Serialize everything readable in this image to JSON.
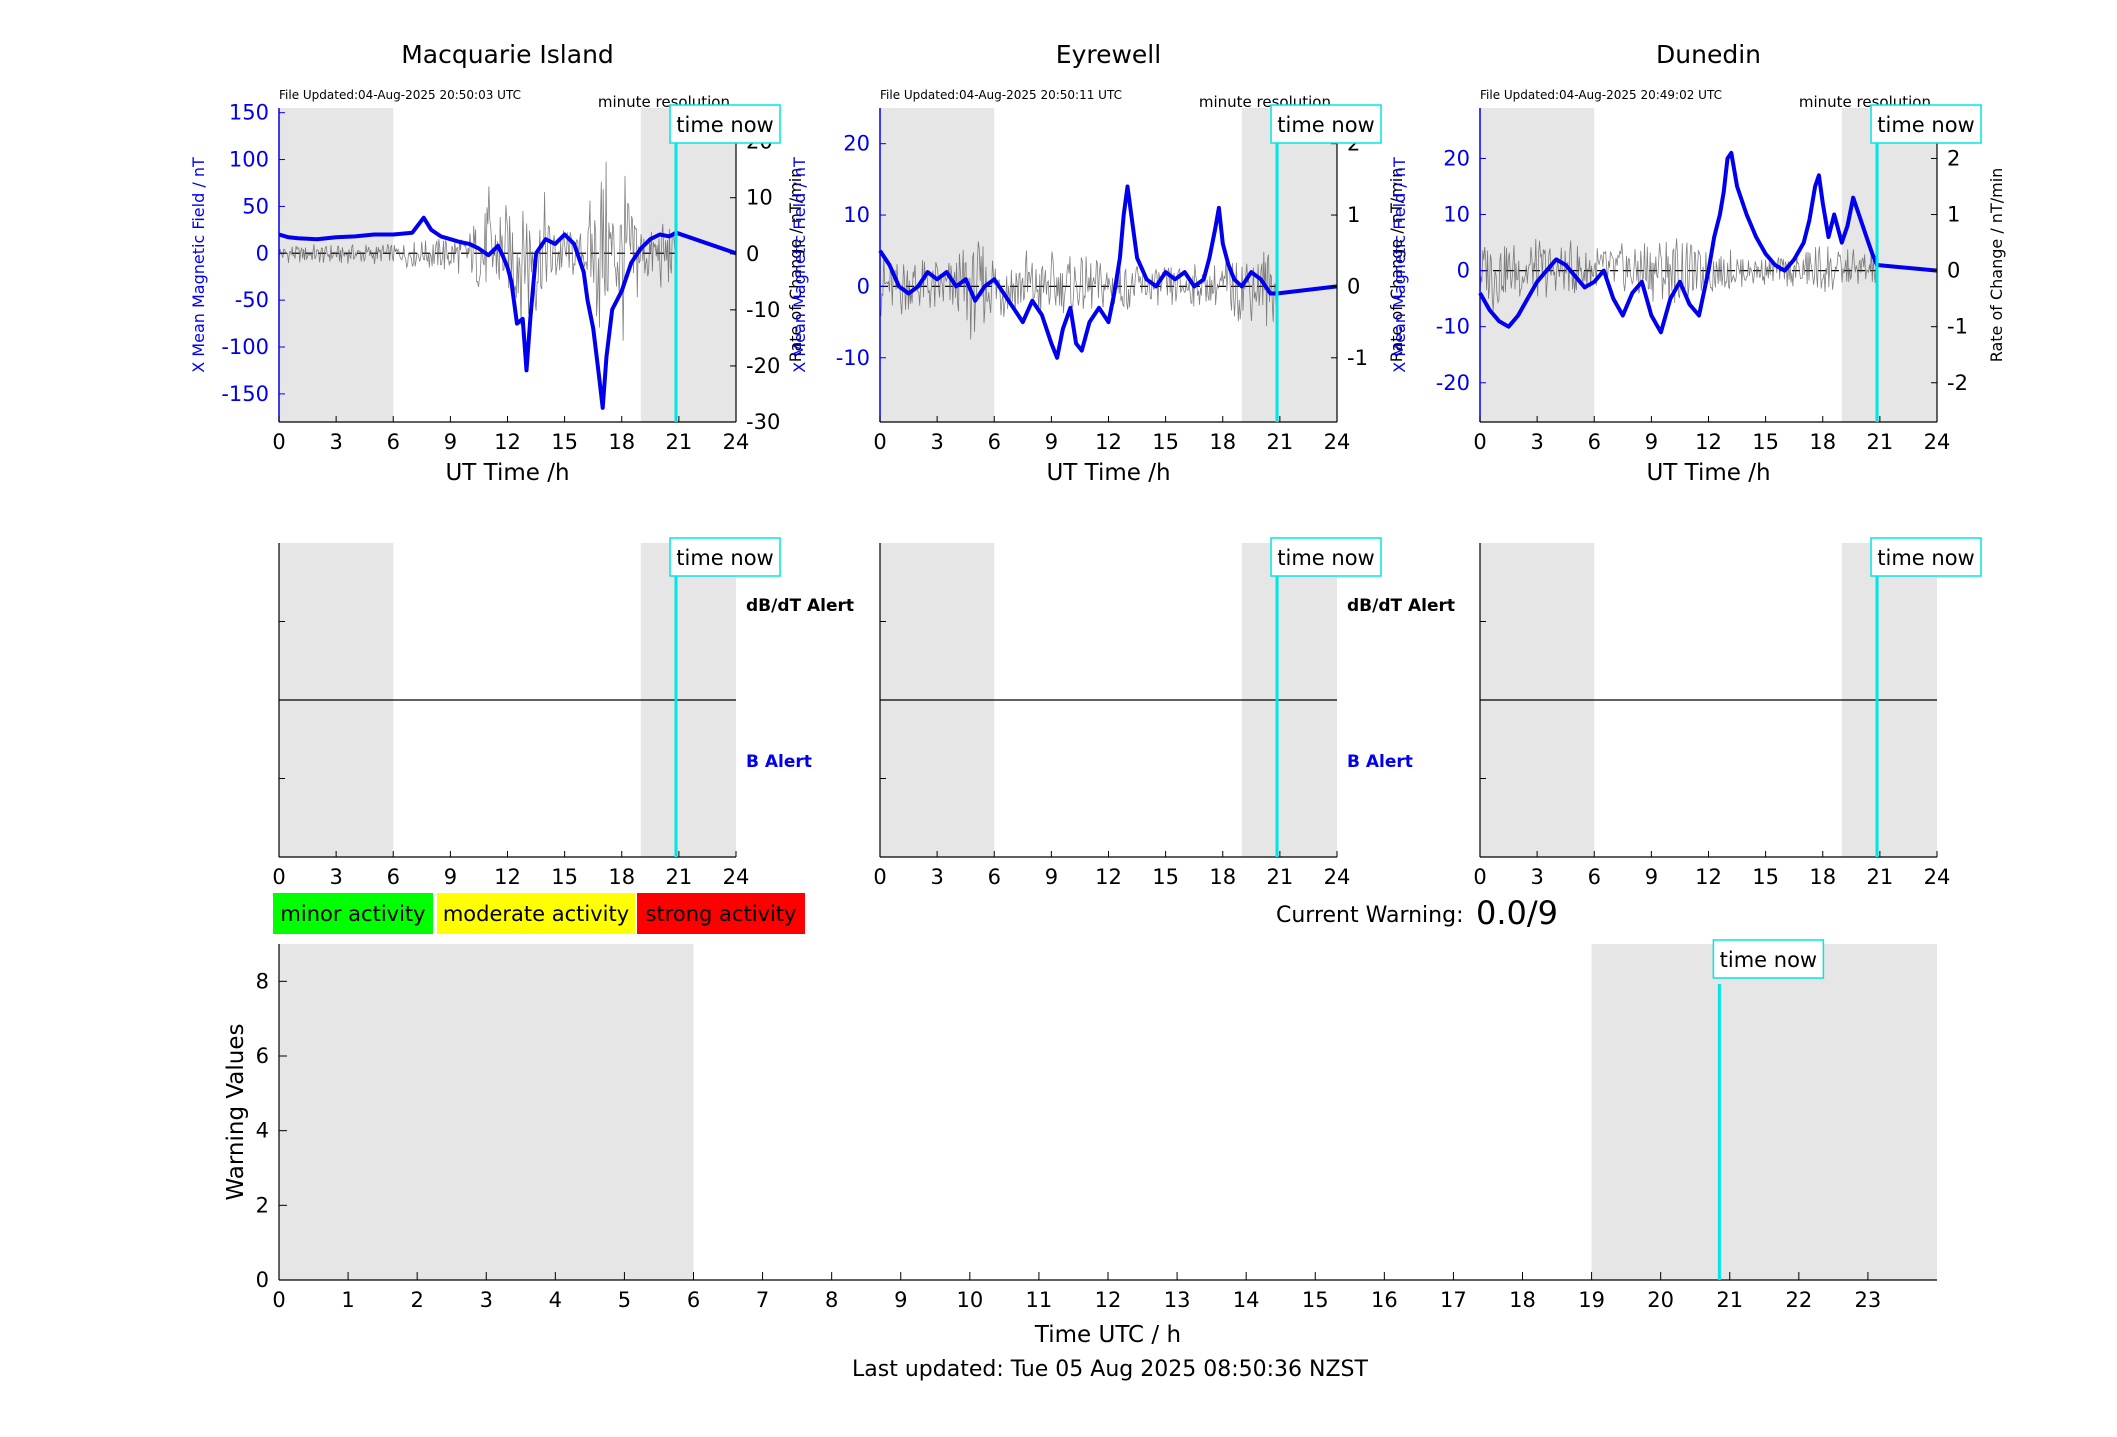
{
  "footer": {
    "last_updated": "Last updated: Tue 05 Aug 2025 08:50:36 NZST"
  },
  "common": {
    "time_now_label": "time now",
    "minute_resolution": "minute resolution",
    "x_axis_label": "UT Time /h",
    "left_axis_label": "X Mean Magnetic Field / nT",
    "right_axis_label": "Rate of Change / nT/min",
    "dbdt_alert": "dB/dT Alert",
    "b_alert": "B Alert",
    "time_now_hour": 20.85,
    "x_ticks": [
      "0",
      "3",
      "6",
      "9",
      "12",
      "15",
      "18",
      "21",
      "24"
    ],
    "x_range": [
      0,
      24
    ],
    "night_bands_hours": [
      [
        0,
        6
      ],
      [
        19,
        24
      ]
    ],
    "colors": {
      "field_line": "#0000ee",
      "rate_line": "#555555",
      "time_now": "#00e5e5",
      "night_band": "#e6e6e6",
      "axis_blue": "#0000ee"
    }
  },
  "legend": {
    "minor": "minor activity",
    "moderate": "moderate activity",
    "strong": "strong activity",
    "minor_color": "#00ff00",
    "moderate_color": "#ffff00",
    "strong_color": "#ff0000"
  },
  "current_warning": {
    "label": "Current Warning:",
    "value": "0.0/9"
  },
  "chart_data": [
    {
      "type": "line",
      "title": "Macquarie Island",
      "file_updated": "File Updated:04-Aug-2025 20:50:03 UTC",
      "xlabel": "UT Time /h",
      "ylabel": "X Mean Magnetic Field / nT",
      "y2label": "Rate of Change / nT/min",
      "xlim": [
        0,
        24
      ],
      "ylim": [
        -180,
        155
      ],
      "y2lim": [
        -30,
        26
      ],
      "y_ticks": [
        "-150",
        "-100",
        "-50",
        "0",
        "50",
        "100",
        "150"
      ],
      "y2_ticks": [
        "-30",
        "-20",
        "-10",
        "0",
        "10",
        "20"
      ],
      "series": [
        {
          "kind": "field",
          "x": [
            0,
            0.5,
            1,
            2,
            3,
            4,
            5,
            6,
            7,
            7.6,
            8,
            8.5,
            9,
            9.5,
            10,
            10.5,
            11,
            11.5,
            11.8,
            12,
            12.2,
            12.5,
            12.8,
            13,
            13.2,
            13.5,
            14,
            14.5,
            15,
            15.5,
            16,
            16.2,
            16.5,
            16.8,
            17,
            17.2,
            17.5,
            18,
            18.5,
            19,
            19.5,
            20,
            20.5,
            20.85,
            24
          ],
          "y": [
            20,
            17,
            16,
            15,
            17,
            18,
            20,
            20,
            22,
            38,
            25,
            18,
            15,
            12,
            10,
            5,
            -2,
            8,
            -5,
            -15,
            -30,
            -75,
            -70,
            -125,
            -70,
            0,
            15,
            10,
            20,
            10,
            -20,
            -50,
            -80,
            -130,
            -165,
            -110,
            -60,
            -40,
            -10,
            5,
            15,
            20,
            18,
            22,
            0
          ]
        },
        {
          "kind": "rate",
          "amplitude": [
            [
              0,
              2
            ],
            [
              6,
              2
            ],
            [
              10,
              5
            ],
            [
              11,
              14
            ],
            [
              12,
              10
            ],
            [
              13,
              16
            ],
            [
              15,
              6
            ],
            [
              16,
              4
            ],
            [
              17,
              22
            ],
            [
              17.5,
              14
            ],
            [
              18,
              18
            ],
            [
              19,
              8
            ],
            [
              20.85,
              6
            ]
          ]
        }
      ]
    },
    {
      "type": "line",
      "title": "Eyrewell",
      "file_updated": "File Updated:04-Aug-2025 20:50:11 UTC",
      "xlabel": "UT Time /h",
      "ylabel": "X Mean Magnetic Field / nT",
      "y2label": "Rate of Change / nT/min",
      "xlim": [
        0,
        24
      ],
      "ylim": [
        -19,
        25
      ],
      "y2lim": [
        -1.9,
        2.5
      ],
      "y_ticks": [
        "-10",
        "0",
        "10",
        "20"
      ],
      "y2_ticks": [
        "-1",
        "0",
        "1",
        "2"
      ],
      "series": [
        {
          "kind": "field",
          "x": [
            0,
            0.5,
            1,
            1.5,
            2,
            2.5,
            3,
            3.5,
            4,
            4.5,
            5,
            5.5,
            6,
            6.5,
            7,
            7.5,
            8,
            8.5,
            9,
            9.3,
            9.6,
            10,
            10.3,
            10.6,
            11,
            11.5,
            12,
            12.3,
            12.6,
            12.8,
            13,
            13.2,
            13.5,
            14,
            14.5,
            15,
            15.5,
            16,
            16.5,
            17,
            17.3,
            17.6,
            17.8,
            18,
            18.3,
            18.6,
            19,
            19.5,
            20,
            20.5,
            20.85,
            24
          ],
          "y": [
            5,
            3,
            0,
            -1,
            0,
            2,
            1,
            2,
            0,
            1,
            -2,
            0,
            1,
            -1,
            -3,
            -5,
            -2,
            -4,
            -8,
            -10,
            -6,
            -3,
            -8,
            -9,
            -5,
            -3,
            -5,
            -1,
            4,
            10,
            14,
            10,
            4,
            1,
            0,
            2,
            1,
            2,
            0,
            1,
            4,
            8,
            11,
            6,
            3,
            1,
            0,
            2,
            1,
            -1,
            -1,
            0
          ]
        },
        {
          "kind": "rate",
          "amplitude": [
            [
              0,
              0.5
            ],
            [
              4,
              0.5
            ],
            [
              5,
              0.9
            ],
            [
              6,
              0.6
            ],
            [
              8,
              0.6
            ],
            [
              10,
              0.5
            ],
            [
              12,
              0.4
            ],
            [
              14,
              0.4
            ],
            [
              17,
              0.3
            ],
            [
              19,
              0.6
            ],
            [
              20.85,
              0.7
            ]
          ]
        }
      ]
    },
    {
      "type": "line",
      "title": "Dunedin",
      "file_updated": "File Updated:04-Aug-2025 20:49:02 UTC",
      "xlabel": "UT Time /h",
      "ylabel": "X Mean Magnetic Field / nT",
      "y2label": "Rate of Change / nT/min",
      "xlim": [
        0,
        24
      ],
      "ylim": [
        -27,
        29
      ],
      "y2lim": [
        -2.7,
        2.9
      ],
      "y_ticks": [
        "-20",
        "-10",
        "0",
        "10",
        "20"
      ],
      "y2_ticks": [
        "-2",
        "-1",
        "0",
        "1",
        "2"
      ],
      "series": [
        {
          "kind": "field",
          "x": [
            0,
            0.5,
            1,
            1.5,
            2,
            2.5,
            3,
            3.5,
            4,
            4.5,
            5,
            5.5,
            6,
            6.5,
            7,
            7.5,
            8,
            8.5,
            9,
            9.5,
            10,
            10.5,
            11,
            11.5,
            12,
            12.3,
            12.6,
            12.8,
            13,
            13.2,
            13.5,
            14,
            14.5,
            15,
            15.5,
            16,
            16.5,
            17,
            17.3,
            17.6,
            17.8,
            18,
            18.3,
            18.6,
            19,
            19.3,
            19.6,
            20,
            20.3,
            20.6,
            20.85,
            24
          ],
          "y": [
            -4,
            -7,
            -9,
            -10,
            -8,
            -5,
            -2,
            0,
            2,
            1,
            -1,
            -3,
            -2,
            0,
            -5,
            -8,
            -4,
            -2,
            -8,
            -11,
            -5,
            -2,
            -6,
            -8,
            0,
            6,
            10,
            14,
            20,
            21,
            15,
            10,
            6,
            3,
            1,
            0,
            2,
            5,
            9,
            15,
            17,
            12,
            6,
            10,
            5,
            8,
            13,
            9,
            6,
            3,
            1,
            0
          ]
        },
        {
          "kind": "rate",
          "amplitude": [
            [
              0,
              0.9
            ],
            [
              3,
              0.6
            ],
            [
              6,
              0.5
            ],
            [
              8,
              0.7
            ],
            [
              10,
              0.8
            ],
            [
              12,
              0.5
            ],
            [
              15,
              0.3
            ],
            [
              17,
              0.4
            ],
            [
              18,
              0.7
            ],
            [
              19,
              0.4
            ],
            [
              20.85,
              0.5
            ]
          ]
        }
      ]
    },
    {
      "type": "line",
      "title": "",
      "xlabel": "Time UTC / h",
      "ylabel": "Warning Values",
      "xlim": [
        0,
        24
      ],
      "ylim": [
        0,
        9
      ],
      "x_ticks": [
        "0",
        "1",
        "2",
        "3",
        "4",
        "5",
        "6",
        "7",
        "8",
        "9",
        "10",
        "11",
        "12",
        "13",
        "14",
        "15",
        "16",
        "17",
        "18",
        "19",
        "20",
        "21",
        "22",
        "23"
      ],
      "y_ticks": [
        "0",
        "2",
        "4",
        "6",
        "8"
      ],
      "series": []
    }
  ]
}
